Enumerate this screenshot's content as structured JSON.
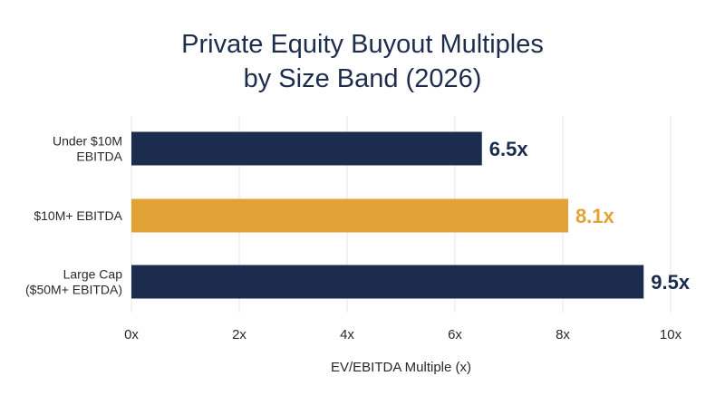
{
  "chart_data": {
    "type": "bar",
    "orientation": "horizontal",
    "title_lines": [
      "Private Equity Buyout Multiples",
      "by Size Band (2026)"
    ],
    "categories": [
      [
        "Under $10M",
        "EBITDA"
      ],
      [
        "$10M+ EBITDA"
      ],
      [
        "Large Cap",
        "($50M+ EBITDA)"
      ]
    ],
    "values": [
      6.5,
      8.1,
      9.5
    ],
    "value_labels": [
      "6.5x",
      "8.1x",
      "9.5x"
    ],
    "bar_colors": [
      "#1b2c4e",
      "#e3a236",
      "#1b2c4e"
    ],
    "label_colors": [
      "#1b2c4e",
      "#e3a236",
      "#1b2c4e"
    ],
    "xlim": [
      0,
      10
    ],
    "xticks": [
      0,
      2,
      4,
      6,
      8,
      10
    ],
    "xtick_labels": [
      "0x",
      "2x",
      "4x",
      "6x",
      "8x",
      "10x"
    ],
    "xlabel": "EV/EBITDA Multiple (x)",
    "ylabel": "",
    "grid": true
  }
}
